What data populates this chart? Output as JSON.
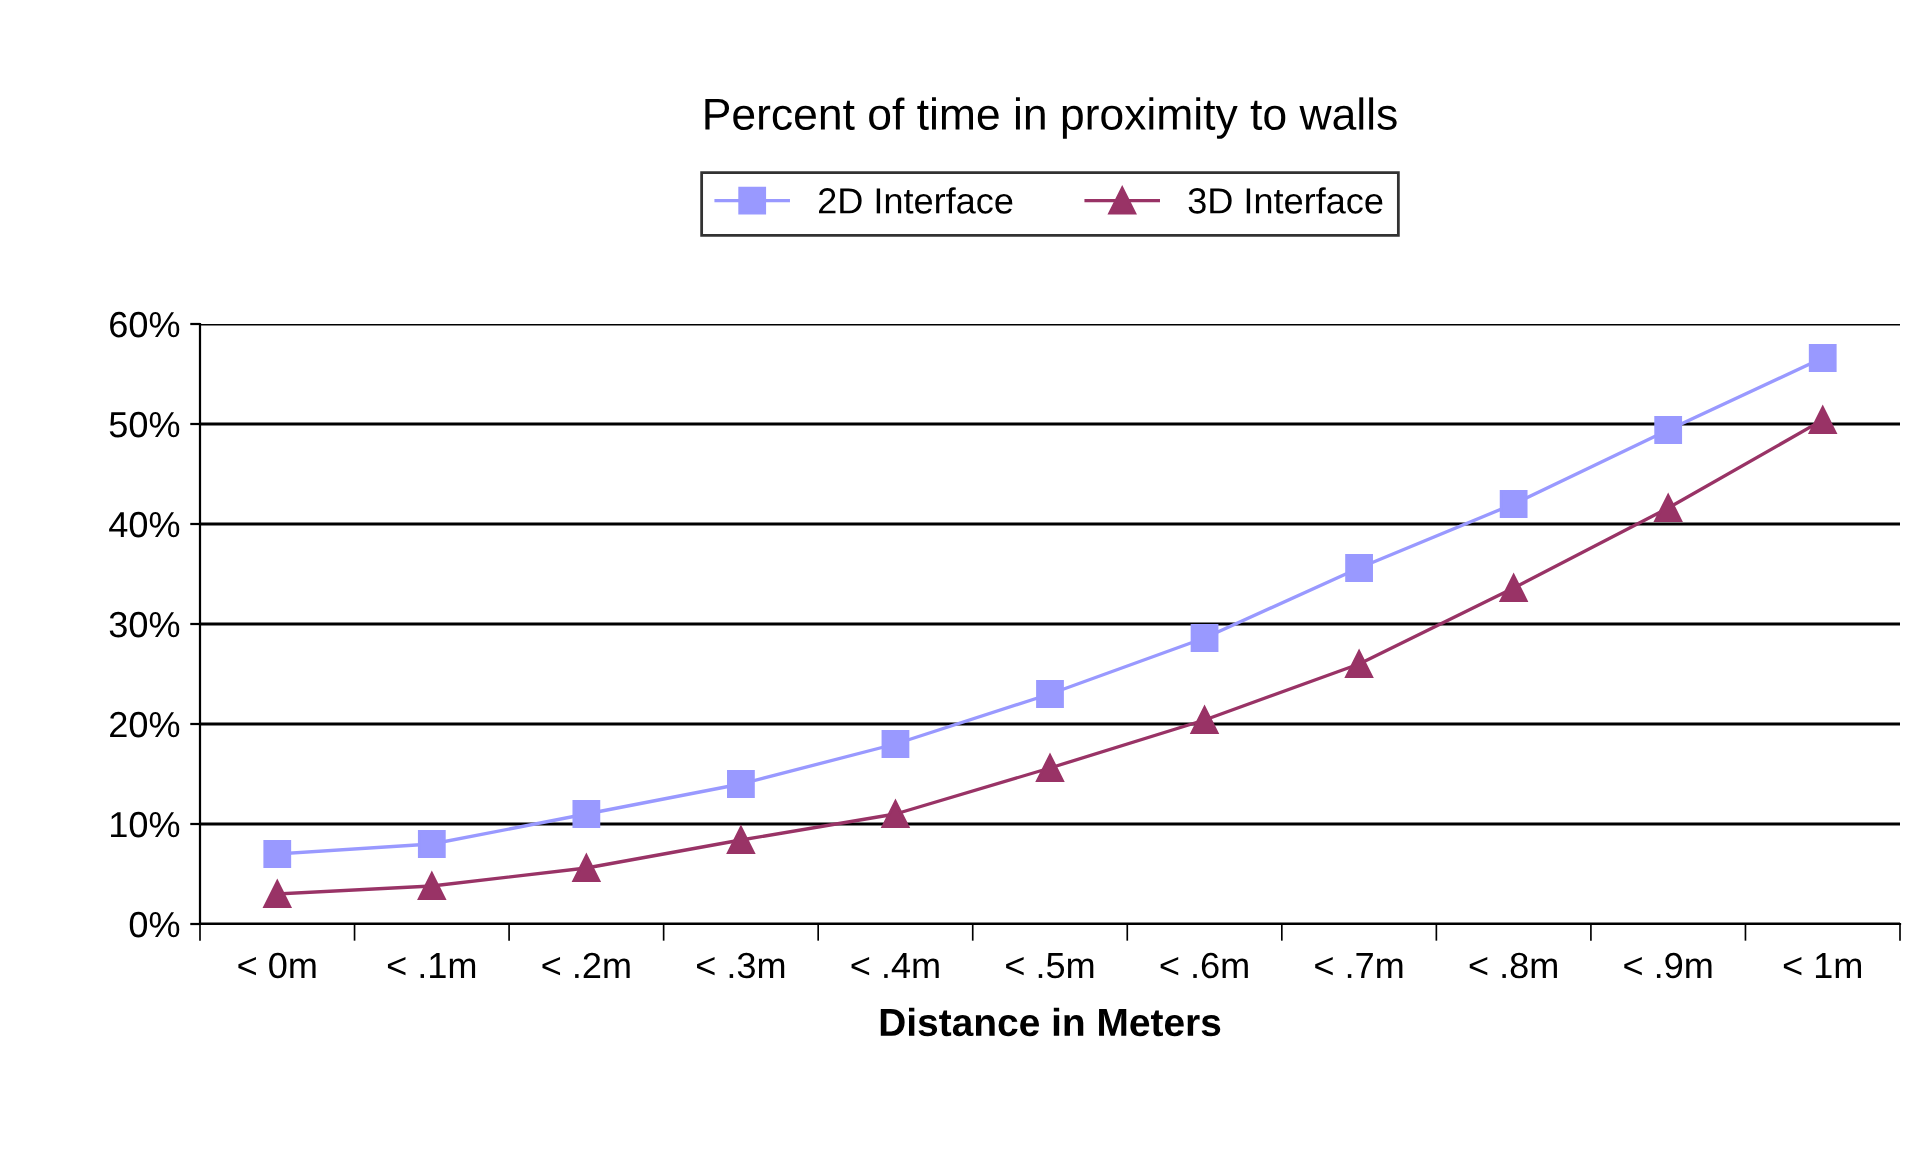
{
  "chart_data": {
    "type": "line",
    "title": "Percent of time in proximity to walls",
    "xlabel": "Distance in Meters",
    "categories": [
      "< 0m",
      "< .1m",
      "< .2m",
      "< .3m",
      "< .4m",
      "< .5m",
      "< .6m",
      "< .7m",
      "< .8m",
      "< .9m",
      "< 1m"
    ],
    "series": [
      {
        "name": "2D Interface",
        "color": "#9999ff",
        "marker": "square",
        "values": [
          7,
          8,
          11,
          14,
          18,
          23,
          28.6,
          35.6,
          42,
          49.4,
          56.6
        ]
      },
      {
        "name": "3D Interface",
        "color": "#993366",
        "marker": "triangle",
        "values": [
          3,
          3.8,
          5.6,
          8.4,
          11,
          15.6,
          20.4,
          26,
          33.6,
          41.6,
          50.4
        ]
      }
    ],
    "ylim": [
      0,
      60
    ],
    "yticks": [
      {
        "value": 0,
        "label": "0%"
      },
      {
        "value": 10,
        "label": "10%"
      },
      {
        "value": 20,
        "label": "20%"
      },
      {
        "value": 30,
        "label": "30%"
      },
      {
        "value": 40,
        "label": "40%"
      },
      {
        "value": 50,
        "label": "50%"
      },
      {
        "value": 60,
        "label": "60%"
      }
    ],
    "grid": "y",
    "legend": "top",
    "line_style": "solid"
  }
}
